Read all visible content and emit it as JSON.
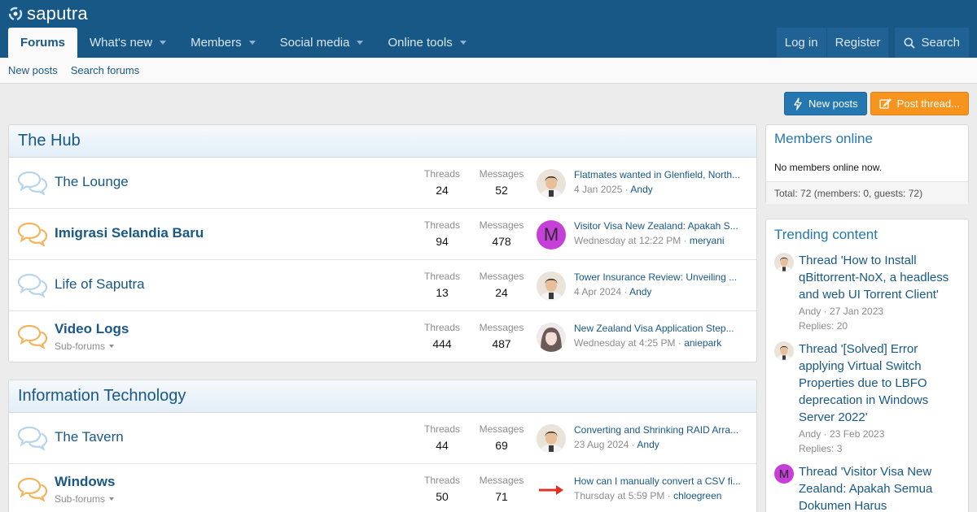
{
  "header": {
    "logo": "saputra",
    "nav": [
      {
        "label": "Forums",
        "active": true
      },
      {
        "label": "What's new"
      },
      {
        "label": "Members"
      },
      {
        "label": "Social media"
      },
      {
        "label": "Online tools"
      }
    ],
    "login": "Log in",
    "register": "Register",
    "search": "Search"
  },
  "subnav": [
    "New posts",
    "Search forums"
  ],
  "actions": {
    "new_posts": "New posts",
    "post_thread": "Post thread..."
  },
  "stat_labels": {
    "threads": "Threads",
    "messages": "Messages",
    "subforums": "Sub-forums"
  },
  "categories": [
    {
      "title": "The Hub",
      "nodes": [
        {
          "title": "The Lounge",
          "unread": false,
          "threads": "24",
          "messages": "52",
          "last_title": "Flatmates wanted in Glenfield, North...",
          "last_date": "4 Jan 2025",
          "last_user": "Andy",
          "avatar": "photo-andy"
        },
        {
          "title": "Imigrasi Selandia Baru",
          "unread": true,
          "threads": "94",
          "messages": "478",
          "last_title": "Visitor Visa New Zealand: Apakah S...",
          "last_date": "Wednesday at 12:22 PM",
          "last_user": "meryani",
          "avatar": "letter-M"
        },
        {
          "title": "Life of Saputra",
          "unread": false,
          "threads": "13",
          "messages": "24",
          "last_title": "Tower Insurance Review: Unveiling ...",
          "last_date": "4 Apr 2024",
          "last_user": "Andy",
          "avatar": "photo-andy"
        },
        {
          "title": "Video Logs",
          "unread": true,
          "subforums": true,
          "threads": "444",
          "messages": "487",
          "last_title": "New Zealand Visa Application Step...",
          "last_date": "Wednesday at 4:25 PM",
          "last_user": "aniepark",
          "avatar": "photo-anie"
        }
      ]
    },
    {
      "title": "Information Technology",
      "nodes": [
        {
          "title": "The Tavern",
          "unread": false,
          "threads": "44",
          "messages": "69",
          "last_title": "Converting and Shrinking RAID Arra...",
          "last_date": "23 Aug 2024",
          "last_user": "Andy",
          "avatar": "photo-andy"
        },
        {
          "title": "Windows",
          "unread": true,
          "subforums": true,
          "threads": "50",
          "messages": "71",
          "last_title": "How can I manually convert a CSV fi...",
          "last_date": "Thursday at 5:59 PM",
          "last_user": "chloegreen",
          "avatar": "red-arrow"
        }
      ]
    }
  ],
  "sidebar": {
    "members_online": {
      "title": "Members online",
      "body": "No members online now.",
      "footer": "Total: 72 (members: 0, guests: 72)"
    },
    "trending": {
      "title": "Trending content",
      "items": [
        {
          "title": "Thread 'How to Install qBittorrent-NoX, a headless and web UI Torrent Client'",
          "meta": "Andy · 27 Jan 2023",
          "replies": "Replies: 20",
          "avatar": "photo-andy"
        },
        {
          "title": "Thread '[Solved] Error applying Virtual Switch Properties due to LBFO deprecation in Windows Server 2022'",
          "meta": "Andy · 23 Feb 2023",
          "replies": "Replies: 3",
          "avatar": "photo-andy"
        },
        {
          "title": "Thread 'Visitor Visa New Zealand: Apakah Semua Dokumen Harus",
          "meta": "",
          "replies": "",
          "avatar": "letter-M"
        }
      ]
    }
  },
  "colors": {
    "header": "#185886",
    "link": "#185886",
    "accent_blue": "#2577b1",
    "accent_orange": "#f7941d",
    "avatar_m": "#c53fd8"
  }
}
